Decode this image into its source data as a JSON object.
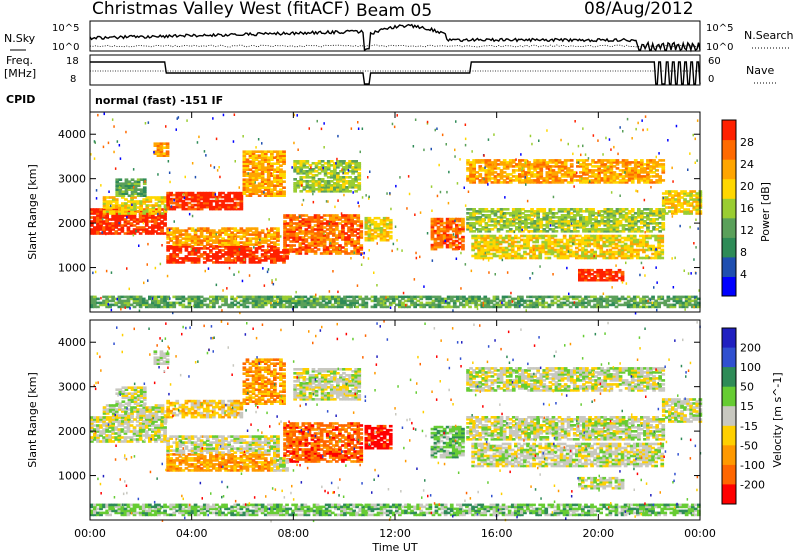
{
  "header": {
    "station": "Christmas Valley West (fitACF)",
    "beam": "Beam 05",
    "date": "08/Aug/2012"
  },
  "panels": {
    "nsky": {
      "label": "N.Sky",
      "ticks_left": [
        "10^5",
        "10^0"
      ],
      "ticks_right": [
        "10^5",
        "10^0"
      ],
      "right_label": "N.Search"
    },
    "freq": {
      "label_line1": "Freq.",
      "label_line2": "[MHz]",
      "ticks_left": [
        "18",
        "8"
      ],
      "ticks_right": [
        "60",
        "0"
      ],
      "right_label": "Nave"
    },
    "cpid": {
      "label": "CPID",
      "text": "normal (fast) -151 IF"
    }
  },
  "colors": {
    "power_scale": [
      "#0000ff",
      "#1f4fb0",
      "#2e8b57",
      "#5aa05a",
      "#9acd32",
      "#ffd700",
      "#ffa500",
      "#ff6a00",
      "#ff2000"
    ],
    "velocity_scale": [
      "#2020c0",
      "#3050d0",
      "#2e8b57",
      "#66cc33",
      "#c8c8c0",
      "#ffd000",
      "#ff9900",
      "#ff6600",
      "#ff0000"
    ]
  },
  "chart_data": [
    {
      "type": "heatmap",
      "title": "",
      "quantity": "Power",
      "ylabel": "Slant Range [km]",
      "xlabel": "",
      "xlim": [
        "00:00",
        "24:00"
      ],
      "ylim": [
        0,
        4500
      ],
      "yticks": [
        1000,
        2000,
        3000,
        4000
      ],
      "colorbar": {
        "label": "Power [dB]",
        "ticks": [
          4,
          8,
          12,
          16,
          20,
          24,
          28
        ],
        "range": [
          0,
          32
        ]
      }
    },
    {
      "type": "heatmap",
      "title": "",
      "quantity": "Velocity",
      "ylabel": "Slant Range [km]",
      "xlabel": "Time UT",
      "xlim": [
        "00:00",
        "24:00"
      ],
      "xticks": [
        "00:00",
        "04:00",
        "08:00",
        "12:00",
        "16:00",
        "20:00",
        "00:00"
      ],
      "ylim": [
        0,
        4500
      ],
      "yticks": [
        1000,
        2000,
        3000,
        4000
      ],
      "colorbar": {
        "label": "Velocity [m s^-1]",
        "ticks": [
          "200",
          "100",
          "50",
          "15",
          "-15",
          "-50",
          "-100",
          "-200"
        ]
      }
    }
  ]
}
